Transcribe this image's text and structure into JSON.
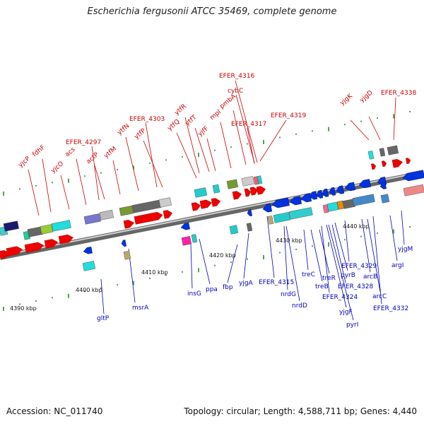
{
  "title": "Escherichia fergusonii ATCC 35469, complete genome",
  "footer": {
    "accession": "Accession: NC_011740",
    "summary": "Topology: circular; Length: 4,588,711 bp; Genes: 4,440"
  },
  "colors": {
    "forward_label": "#cc0000",
    "reverse_label": "#0000bb",
    "backbone": "#888888",
    "tick": "#118811"
  },
  "scale_labels": [
    "4390 kbp",
    "4400 kbp",
    "4410 kbp",
    "4420 kbp",
    "4430 kbp",
    "4440 kbp"
  ],
  "forward_genes": [
    "yjcP",
    "fdhF",
    "yjcO",
    "EFER_4297",
    "acs",
    "actP",
    "ytfM",
    "ytfN",
    "EFER_4303",
    "ytfP",
    "ytfQ",
    "ytfR",
    "ytfT",
    "yjfF",
    "mpl",
    "pmbA",
    "EFER_4317",
    "cybC",
    "EFER_4316",
    "EFER_4319",
    "yjgK",
    "yjgD",
    "EFER_4338"
  ],
  "reverse_genes": [
    "gltP",
    "msrA",
    "insG",
    "ppa",
    "fbp",
    "yjgA",
    "EFER_4315",
    "nrdG",
    "nrdD",
    "treC",
    "treB",
    "treR",
    "EFER_4324",
    "yjgF",
    "pyrI",
    "pyrB",
    "EFER_4328",
    "EFER_4329",
    "arcB",
    "arcC",
    "EFER_4332",
    "argI",
    "yjgM"
  ]
}
